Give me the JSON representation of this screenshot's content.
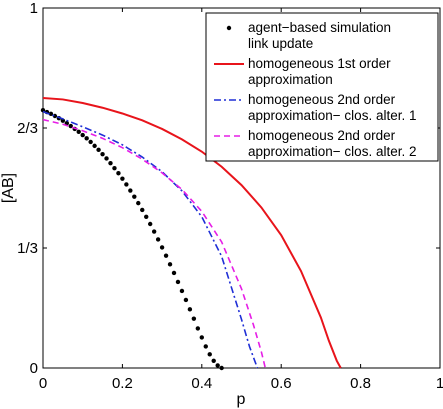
{
  "chart_data": {
    "type": "line",
    "xlabel": "p",
    "ylabel": "[AB]",
    "xlim": [
      0,
      1
    ],
    "ylim": [
      0,
      1
    ],
    "xticks": [
      0,
      0.2,
      0.4,
      0.6,
      0.8,
      1
    ],
    "xtick_labels": [
      "0",
      "0.2",
      "0.4",
      "0.6",
      "0.8",
      "1"
    ],
    "yticks": [
      0,
      0.3333,
      0.6667,
      1
    ],
    "ytick_labels": [
      "0",
      "1/3",
      "2/3",
      "1"
    ],
    "grid": false,
    "legend_position": "top-right",
    "series": [
      {
        "name": "agent−based simulation link update",
        "legend_lines": [
          "agent−based simulation",
          "link update"
        ],
        "style": "dots",
        "color": "#000000",
        "x": [
          0,
          0.01,
          0.02,
          0.03,
          0.04,
          0.05,
          0.06,
          0.07,
          0.08,
          0.09,
          0.1,
          0.11,
          0.12,
          0.13,
          0.14,
          0.15,
          0.16,
          0.17,
          0.18,
          0.19,
          0.2,
          0.21,
          0.22,
          0.23,
          0.24,
          0.25,
          0.26,
          0.27,
          0.28,
          0.29,
          0.3,
          0.31,
          0.32,
          0.33,
          0.34,
          0.35,
          0.36,
          0.37,
          0.38,
          0.39,
          0.4,
          0.41,
          0.42,
          0.43,
          0.44,
          0.45
        ],
        "y": [
          0.716,
          0.711,
          0.706,
          0.7,
          0.694,
          0.687,
          0.68,
          0.672,
          0.664,
          0.656,
          0.647,
          0.638,
          0.628,
          0.617,
          0.606,
          0.594,
          0.582,
          0.569,
          0.555,
          0.541,
          0.526,
          0.51,
          0.493,
          0.476,
          0.458,
          0.439,
          0.42,
          0.4,
          0.379,
          0.357,
          0.335,
          0.312,
          0.288,
          0.264,
          0.239,
          0.214,
          0.189,
          0.163,
          0.137,
          0.11,
          0.085,
          0.06,
          0.038,
          0.02,
          0.007,
          0.0
        ]
      },
      {
        "name": "homogeneous 1st order approximation",
        "legend_lines": [
          "homogeneous 1st order",
          "approximation"
        ],
        "style": "solid",
        "color": "#e8141b",
        "x": [
          0,
          0.05,
          0.1,
          0.15,
          0.2,
          0.25,
          0.3,
          0.35,
          0.4,
          0.45,
          0.5,
          0.55,
          0.6,
          0.65,
          0.7,
          0.72,
          0.74,
          0.75
        ],
        "y": [
          0.75,
          0.746,
          0.736,
          0.723,
          0.707,
          0.688,
          0.664,
          0.635,
          0.601,
          0.559,
          0.508,
          0.446,
          0.369,
          0.269,
          0.14,
          0.076,
          0.02,
          0.0
        ]
      },
      {
        "name": "homogeneous 2nd order approximation− clos. alter. 1",
        "legend_lines": [
          "homogeneous 2nd order",
          "approximation− clos. alter. 1"
        ],
        "style": "dashdot",
        "color": "#1f2fd6",
        "x": [
          0,
          0.05,
          0.1,
          0.15,
          0.2,
          0.25,
          0.3,
          0.35,
          0.4,
          0.45,
          0.5,
          0.52,
          0.54
        ],
        "y": [
          0.712,
          0.692,
          0.67,
          0.647,
          0.62,
          0.586,
          0.545,
          0.492,
          0.42,
          0.31,
          0.135,
          0.06,
          0.0
        ]
      },
      {
        "name": "homogeneous 2nd order approximation− clos. alter. 2",
        "legend_lines": [
          "homogeneous 2nd order",
          "approximation− clos. alter. 2"
        ],
        "style": "dashed",
        "color": "#e61ee6",
        "x": [
          0,
          0.05,
          0.1,
          0.15,
          0.2,
          0.25,
          0.3,
          0.35,
          0.4,
          0.45,
          0.5,
          0.53,
          0.55,
          0.56
        ],
        "y": [
          0.69,
          0.677,
          0.659,
          0.638,
          0.612,
          0.58,
          0.542,
          0.496,
          0.435,
          0.35,
          0.22,
          0.12,
          0.045,
          0.0
        ]
      }
    ]
  }
}
